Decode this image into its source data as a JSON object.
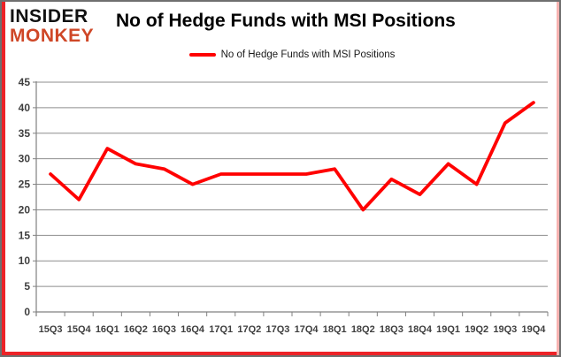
{
  "brand": {
    "line1": "INSIDER",
    "line2": "MONKEY"
  },
  "title": "No of Hedge Funds with MSI Positions",
  "legend": {
    "label": "No of Hedge Funds with MSI Positions"
  },
  "colors": {
    "series_red": "#ff0000",
    "brand_black": "#121212",
    "brand_red": "#cf4727",
    "frame_red": "#ec2327",
    "frame_pink": "#f7b3b1",
    "frame_border_gray": "#6f6f6f",
    "grid_gray": "#8e8e8e",
    "axis_line_gray": "#808080",
    "axis_text": "#3f3f3f"
  },
  "chart_data": {
    "type": "line",
    "title": "No of Hedge Funds with MSI Positions",
    "categories": [
      "15Q3",
      "15Q4",
      "16Q1",
      "16Q2",
      "16Q3",
      "16Q4",
      "17Q1",
      "17Q2",
      "17Q3",
      "17Q4",
      "18Q1",
      "18Q2",
      "18Q3",
      "18Q4",
      "19Q1",
      "19Q2",
      "19Q3",
      "19Q4"
    ],
    "series": [
      {
        "name": "No of Hedge Funds with MSI Positions",
        "color": "#ff0000",
        "values": [
          27,
          22,
          32,
          29,
          28,
          25,
          27,
          27,
          27,
          27,
          28,
          20,
          26,
          23,
          29,
          25,
          37,
          41
        ]
      }
    ],
    "xlabel": "",
    "ylabel": "",
    "ylim": [
      0,
      45
    ],
    "ytick_step": 5,
    "grid": true,
    "legend_position": "top"
  }
}
